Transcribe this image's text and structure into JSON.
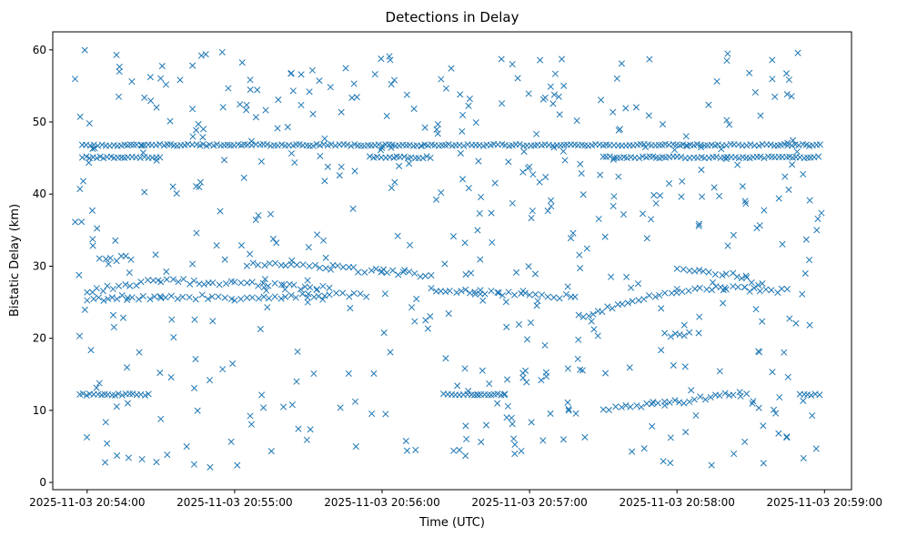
{
  "chart_data": {
    "type": "scatter",
    "title": "Detections in Delay",
    "xlabel": "Time (UTC)",
    "ylabel": "Bistatic Delay (km)",
    "marker": "x",
    "color": "#1f77b4",
    "grid": false,
    "legend": "none",
    "xlim": [
      "2025-11-03 20:53:46",
      "2025-11-03 20:59:11"
    ],
    "ylim": [
      -1,
      62.5
    ],
    "x_ticks": [
      "2025-11-03 20:54:00",
      "2025-11-03 20:55:00",
      "2025-11-03 20:56:00",
      "2025-11-03 20:57:00",
      "2025-11-03 20:58:00",
      "2025-11-03 20:59:00"
    ],
    "y_ticks": [
      "0",
      "10",
      "20",
      "30",
      "40",
      "50",
      "60"
    ],
    "points_range": [
      "2025-11-03 20:53:55",
      "2025-11-03 20:58:59"
    ],
    "bands": [
      {
        "delay": 46.8,
        "segments": [
          [
            "2025-11-03 20:53:58",
            "2025-11-03 20:58:59"
          ]
        ]
      },
      {
        "delay": 45.1,
        "segments": [
          [
            "2025-11-03 20:53:58",
            "2025-11-03 20:54:30"
          ],
          [
            "2025-11-03 20:55:55",
            "2025-11-03 20:56:20"
          ],
          [
            "2025-11-03 20:57:30",
            "2025-11-03 20:58:59"
          ]
        ]
      },
      {
        "delay": 12.2,
        "segments": [
          [
            "2025-11-03 20:53:57",
            "2025-11-03 20:54:25"
          ],
          [
            "2025-11-03 20:56:25",
            "2025-11-03 20:56:50"
          ],
          [
            "2025-11-03 20:58:50",
            "2025-11-03 20:58:59"
          ]
        ]
      }
    ],
    "tracks": [
      {
        "points": [
          [
            "2025-11-03 20:54:00",
            26.5
          ],
          [
            "2025-11-03 20:54:30",
            28.0
          ],
          [
            "2025-11-03 20:55:00",
            27.6
          ],
          [
            "2025-11-03 20:55:20",
            27.2
          ],
          [
            "2025-11-03 20:55:40",
            26.8
          ]
        ]
      },
      {
        "points": [
          [
            "2025-11-03 20:54:00",
            25.5
          ],
          [
            "2025-11-03 20:54:30",
            25.8
          ],
          [
            "2025-11-03 20:55:00",
            25.6
          ],
          [
            "2025-11-03 20:55:30",
            25.9
          ],
          [
            "2025-11-03 20:55:55",
            26.0
          ]
        ]
      },
      {
        "points": [
          [
            "2025-11-03 20:55:05",
            30.2
          ],
          [
            "2025-11-03 20:55:40",
            29.8
          ],
          [
            "2025-11-03 20:56:00",
            29.2
          ],
          [
            "2025-11-03 20:56:20",
            28.7
          ]
        ]
      },
      {
        "points": [
          [
            "2025-11-03 20:54:05",
            31.0
          ],
          [
            "2025-11-03 20:54:20",
            31.1
          ]
        ]
      },
      {
        "points": [
          [
            "2025-11-03 20:56:20",
            26.8
          ],
          [
            "2025-11-03 20:56:40",
            26.5
          ],
          [
            "2025-11-03 20:57:00",
            26.0
          ],
          [
            "2025-11-03 20:57:20",
            25.8
          ]
        ]
      },
      {
        "points": [
          [
            "2025-11-03 20:57:20",
            23.0
          ],
          [
            "2025-11-03 20:57:40",
            25.0
          ],
          [
            "2025-11-03 20:58:00",
            26.5
          ],
          [
            "2025-11-03 20:58:20",
            27.0
          ],
          [
            "2025-11-03 20:58:45",
            26.5
          ]
        ]
      },
      {
        "points": [
          [
            "2025-11-03 20:58:00",
            29.8
          ],
          [
            "2025-11-03 20:58:20",
            29.0
          ],
          [
            "2025-11-03 20:58:35",
            27.5
          ]
        ]
      },
      {
        "points": [
          [
            "2025-11-03 20:57:30",
            10.0
          ],
          [
            "2025-11-03 20:57:55",
            11.0
          ],
          [
            "2025-11-03 20:58:30",
            12.5
          ]
        ]
      },
      {
        "points": [
          [
            "2025-11-03 20:57:55",
            20.6
          ],
          [
            "2025-11-03 20:58:05",
            20.5
          ]
        ]
      }
    ],
    "scatter_count": 500,
    "scatter_delay_range": [
      1.5,
      60
    ]
  }
}
